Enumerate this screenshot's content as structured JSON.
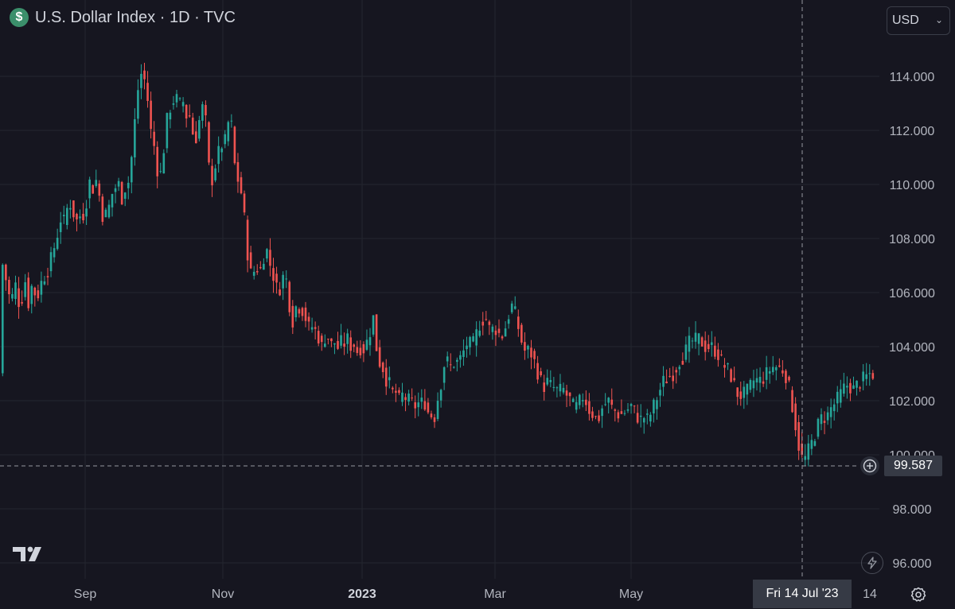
{
  "header": {
    "symbol_icon": "$",
    "title": "U.S. Dollar Index · 1D · TVC"
  },
  "currency": {
    "label": "USD"
  },
  "crosshair": {
    "price_label": "99.587",
    "date_label": "Fri 14 Jul '23",
    "price_value": 99.587
  },
  "icons": {
    "logo": "tradingview-logo-icon",
    "bolt": "lightning-icon",
    "gear": "settings-gear-icon",
    "plus": "add-plus-icon"
  },
  "colors": {
    "background": "#161620",
    "up": "#26a69a",
    "down": "#ef5350",
    "grid": "#24262f",
    "text": "#b2b5be"
  },
  "chart_data": {
    "type": "candlestick",
    "title": "U.S. Dollar Index · 1D · TVC",
    "xlabel": "",
    "ylabel": "",
    "ylim": [
      95.5,
      116.3
    ],
    "grid": true,
    "y_ticks": [
      "114.000",
      "112.000",
      "110.000",
      "108.000",
      "106.000",
      "104.000",
      "102.000",
      "100.000",
      "98.000",
      "96.000"
    ],
    "x_ticks": [
      "Sep",
      "Nov",
      "2023",
      "Mar",
      "May",
      "14"
    ],
    "series_close_path": [
      [
        0,
        107.3
      ],
      [
        6,
        106.5
      ],
      [
        12,
        105.6
      ],
      [
        18,
        106.3
      ],
      [
        24,
        105.4
      ],
      [
        30,
        106.5
      ],
      [
        36,
        105.3
      ],
      [
        40,
        106.8
      ],
      [
        44,
        105.5
      ],
      [
        48,
        106.2
      ],
      [
        54,
        106.6
      ],
      [
        60,
        106.9
      ],
      [
        66,
        107.6
      ],
      [
        70,
        108.0
      ],
      [
        74,
        108.8
      ],
      [
        78,
        108.5
      ],
      [
        82,
        109.0
      ],
      [
        86,
        109.4
      ],
      [
        90,
        109.0
      ],
      [
        96,
        108.6
      ],
      [
        100,
        108.9
      ],
      [
        104,
        108.9
      ],
      [
        108,
        109.5
      ],
      [
        112,
        110.2
      ],
      [
        116,
        109.8
      ],
      [
        120,
        110.2
      ],
      [
        124,
        109.5
      ],
      [
        128,
        108.8
      ],
      [
        132,
        108.9
      ],
      [
        136,
        109.2
      ],
      [
        140,
        109.7
      ],
      [
        144,
        109.9
      ],
      [
        148,
        110.0
      ],
      [
        152,
        109.5
      ],
      [
        156,
        109.9
      ],
      [
        160,
        110.1
      ],
      [
        164,
        111.0
      ],
      [
        168,
        112.3
      ],
      [
        172,
        113.5
      ],
      [
        176,
        114.1
      ],
      [
        180,
        113.9
      ],
      [
        184,
        113.2
      ],
      [
        188,
        112.0
      ],
      [
        192,
        111.5
      ],
      [
        196,
        110.6
      ],
      [
        200,
        110.3
      ],
      [
        204,
        111.2
      ],
      [
        208,
        112.3
      ],
      [
        212,
        112.8
      ],
      [
        216,
        113.1
      ],
      [
        220,
        113.2
      ],
      [
        224,
        112.9
      ],
      [
        228,
        113.2
      ],
      [
        232,
        112.5
      ],
      [
        236,
        112.7
      ],
      [
        240,
        112.0
      ],
      [
        244,
        111.6
      ],
      [
        248,
        112.2
      ],
      [
        252,
        112.8
      ],
      [
        256,
        112.9
      ],
      [
        260,
        110.9
      ],
      [
        264,
        110.0
      ],
      [
        268,
        110.6
      ],
      [
        272,
        111.0
      ],
      [
        276,
        111.5
      ],
      [
        280,
        111.4
      ],
      [
        284,
        111.9
      ],
      [
        288,
        112.9
      ],
      [
        292,
        111.0
      ],
      [
        296,
        110.3
      ],
      [
        300,
        110.0
      ],
      [
        304,
        109.3
      ],
      [
        308,
        108.0
      ],
      [
        312,
        106.8
      ],
      [
        316,
        106.6
      ],
      [
        320,
        107.0
      ],
      [
        324,
        106.8
      ],
      [
        328,
        106.9
      ],
      [
        332,
        107.8
      ],
      [
        336,
        107.3
      ],
      [
        340,
        106.8
      ],
      [
        344,
        106.5
      ],
      [
        348,
        105.9
      ],
      [
        352,
        106.4
      ],
      [
        356,
        106.7
      ],
      [
        360,
        106.3
      ],
      [
        364,
        105.1
      ],
      [
        368,
        104.9
      ],
      [
        372,
        105.8
      ],
      [
        376,
        105.3
      ],
      [
        380,
        105.4
      ],
      [
        384,
        104.9
      ],
      [
        388,
        104.6
      ],
      [
        392,
        104.8
      ],
      [
        396,
        104.5
      ],
      [
        400,
        104.3
      ],
      [
        404,
        103.9
      ],
      [
        408,
        104.5
      ],
      [
        412,
        104.3
      ],
      [
        416,
        104.0
      ],
      [
        420,
        104.2
      ],
      [
        424,
        103.9
      ],
      [
        428,
        104.2
      ],
      [
        432,
        104.1
      ],
      [
        436,
        104.3
      ],
      [
        440,
        104.0
      ],
      [
        444,
        104.1
      ],
      [
        448,
        103.8
      ],
      [
        452,
        104.0
      ],
      [
        456,
        103.9
      ],
      [
        460,
        104.2
      ],
      [
        464,
        104.6
      ],
      [
        468,
        105.1
      ],
      [
        472,
        103.9
      ],
      [
        476,
        103.4
      ],
      [
        480,
        103.2
      ],
      [
        484,
        102.8
      ],
      [
        488,
        102.6
      ],
      [
        492,
        102.3
      ],
      [
        496,
        102.3
      ],
      [
        500,
        102.0
      ],
      [
        504,
        102.2
      ],
      [
        508,
        102.1
      ],
      [
        512,
        102.0
      ],
      [
        516,
        101.9
      ],
      [
        520,
        101.8
      ],
      [
        524,
        101.9
      ],
      [
        528,
        101.9
      ],
      [
        532,
        102.0
      ],
      [
        536,
        101.6
      ],
      [
        540,
        101.5
      ],
      [
        544,
        101.3
      ],
      [
        548,
        102.0
      ],
      [
        552,
        102.5
      ],
      [
        556,
        103.3
      ],
      [
        560,
        103.5
      ],
      [
        564,
        103.2
      ],
      [
        568,
        103.4
      ],
      [
        572,
        103.4
      ],
      [
        576,
        103.5
      ],
      [
        580,
        103.7
      ],
      [
        584,
        104.1
      ],
      [
        588,
        104.1
      ],
      [
        592,
        104.0
      ],
      [
        596,
        104.3
      ],
      [
        600,
        104.8
      ],
      [
        604,
        104.9
      ],
      [
        608,
        105.2
      ],
      [
        612,
        104.7
      ],
      [
        616,
        104.6
      ],
      [
        620,
        104.7
      ],
      [
        624,
        104.6
      ],
      [
        628,
        104.3
      ],
      [
        632,
        104.6
      ],
      [
        636,
        104.9
      ],
      [
        640,
        105.5
      ],
      [
        644,
        105.5
      ],
      [
        648,
        104.9
      ],
      [
        652,
        104.5
      ],
      [
        656,
        103.9
      ],
      [
        660,
        103.8
      ],
      [
        664,
        103.9
      ],
      [
        668,
        103.6
      ],
      [
        672,
        103.3
      ],
      [
        676,
        102.9
      ],
      [
        680,
        102.6
      ],
      [
        684,
        102.5
      ],
      [
        688,
        102.8
      ],
      [
        692,
        102.4
      ],
      [
        696,
        102.5
      ],
      [
        700,
        102.3
      ],
      [
        704,
        102.4
      ],
      [
        708,
        102.4
      ],
      [
        712,
        102.1
      ],
      [
        716,
        102.0
      ],
      [
        720,
        101.7
      ],
      [
        724,
        101.8
      ],
      [
        728,
        102.0
      ],
      [
        732,
        102.2
      ],
      [
        736,
        101.9
      ],
      [
        740,
        101.6
      ],
      [
        744,
        101.5
      ],
      [
        748,
        101.3
      ],
      [
        752,
        101.4
      ],
      [
        756,
        101.8
      ],
      [
        760,
        101.9
      ],
      [
        764,
        102.0
      ],
      [
        768,
        101.7
      ],
      [
        772,
        101.6
      ],
      [
        776,
        101.5
      ],
      [
        780,
        101.5
      ],
      [
        784,
        101.6
      ],
      [
        788,
        101.7
      ],
      [
        792,
        101.8
      ],
      [
        796,
        101.6
      ],
      [
        800,
        101.4
      ],
      [
        804,
        101.3
      ],
      [
        808,
        101.4
      ],
      [
        812,
        101.3
      ],
      [
        816,
        101.5
      ],
      [
        820,
        101.8
      ],
      [
        824,
        102.1
      ],
      [
        828,
        102.4
      ],
      [
        832,
        102.7
      ],
      [
        836,
        102.8
      ],
      [
        840,
        102.9
      ],
      [
        844,
        103.0
      ],
      [
        848,
        103.2
      ],
      [
        852,
        103.5
      ],
      [
        856,
        103.6
      ],
      [
        860,
        103.8
      ],
      [
        864,
        104.1
      ],
      [
        868,
        104.2
      ],
      [
        872,
        104.2
      ],
      [
        876,
        104.3
      ],
      [
        880,
        104.2
      ],
      [
        884,
        104.0
      ],
      [
        888,
        104.0
      ],
      [
        892,
        104.0
      ],
      [
        896,
        103.9
      ],
      [
        900,
        103.8
      ],
      [
        904,
        103.5
      ],
      [
        908,
        103.3
      ],
      [
        912,
        103.2
      ],
      [
        916,
        103.0
      ],
      [
        920,
        102.7
      ],
      [
        924,
        102.3
      ],
      [
        928,
        102.2
      ],
      [
        932,
        102.2
      ],
      [
        936,
        102.3
      ],
      [
        940,
        102.4
      ],
      [
        944,
        102.7
      ],
      [
        948,
        102.8
      ],
      [
        952,
        102.7
      ],
      [
        956,
        102.8
      ],
      [
        960,
        102.9
      ],
      [
        964,
        103.1
      ],
      [
        968,
        103.2
      ],
      [
        972,
        103.3
      ],
      [
        976,
        103.2
      ],
      [
        980,
        103.2
      ],
      [
        984,
        103.1
      ],
      [
        988,
        102.8
      ],
      [
        992,
        102.2
      ],
      [
        996,
        101.5
      ],
      [
        1000,
        100.8
      ],
      [
        1004,
        100.0
      ],
      [
        1008,
        99.8
      ],
      [
        1012,
        99.9
      ],
      [
        1016,
        100.3
      ],
      [
        1020,
        100.5
      ],
      [
        1024,
        100.9
      ],
      [
        1028,
        101.2
      ],
      [
        1032,
        101.4
      ],
      [
        1036,
        101.4
      ],
      [
        1040,
        101.5
      ],
      [
        1044,
        101.8
      ],
      [
        1048,
        101.9
      ],
      [
        1052,
        102.1
      ],
      [
        1056,
        102.3
      ],
      [
        1060,
        102.5
      ],
      [
        1064,
        102.6
      ],
      [
        1068,
        102.5
      ],
      [
        1072,
        102.4
      ],
      [
        1076,
        102.6
      ],
      [
        1080,
        102.7
      ],
      [
        1084,
        102.8
      ],
      [
        1088,
        102.9
      ],
      [
        1092,
        103.0
      ],
      [
        1096,
        103.0
      ]
    ]
  }
}
